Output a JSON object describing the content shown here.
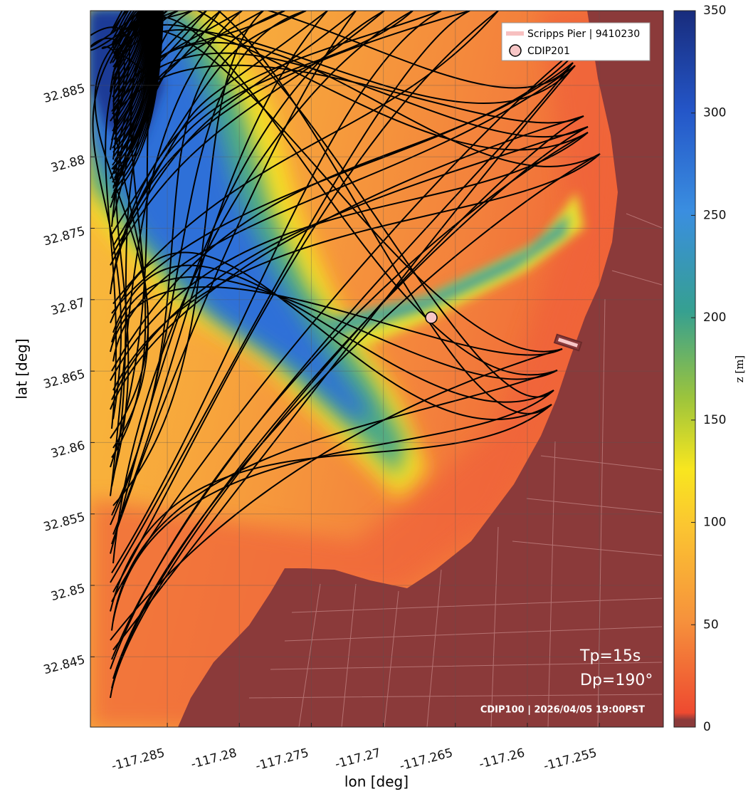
{
  "map": {
    "x_label": "lon [deg]",
    "y_label": "lat [deg]",
    "xlim": [
      -117.29034,
      -117.25056
    ],
    "xticks": [
      -117.285,
      -117.28,
      -117.275,
      -117.27,
      -117.265,
      -117.26,
      -117.255
    ],
    "ylim": [
      32.84008,
      32.89023
    ],
    "yticks": [
      32.845,
      32.85,
      32.855,
      32.86,
      32.865,
      32.87,
      32.875,
      32.88,
      32.885
    ],
    "grid": true,
    "colorbar": {
      "label": "z [m]",
      "lim": [
        0,
        350
      ],
      "ticks": [
        0,
        50,
        100,
        150,
        200,
        250,
        300,
        350
      ]
    },
    "legend": [
      {
        "label": "Scripps Pier | 9410230"
      },
      {
        "label": "CDIP201"
      }
    ],
    "annotations": {
      "period": "Tp=15s",
      "direction": "Dp=190°",
      "source": "CDIP100 | 2026/04/05 19:00PST"
    }
  }
}
